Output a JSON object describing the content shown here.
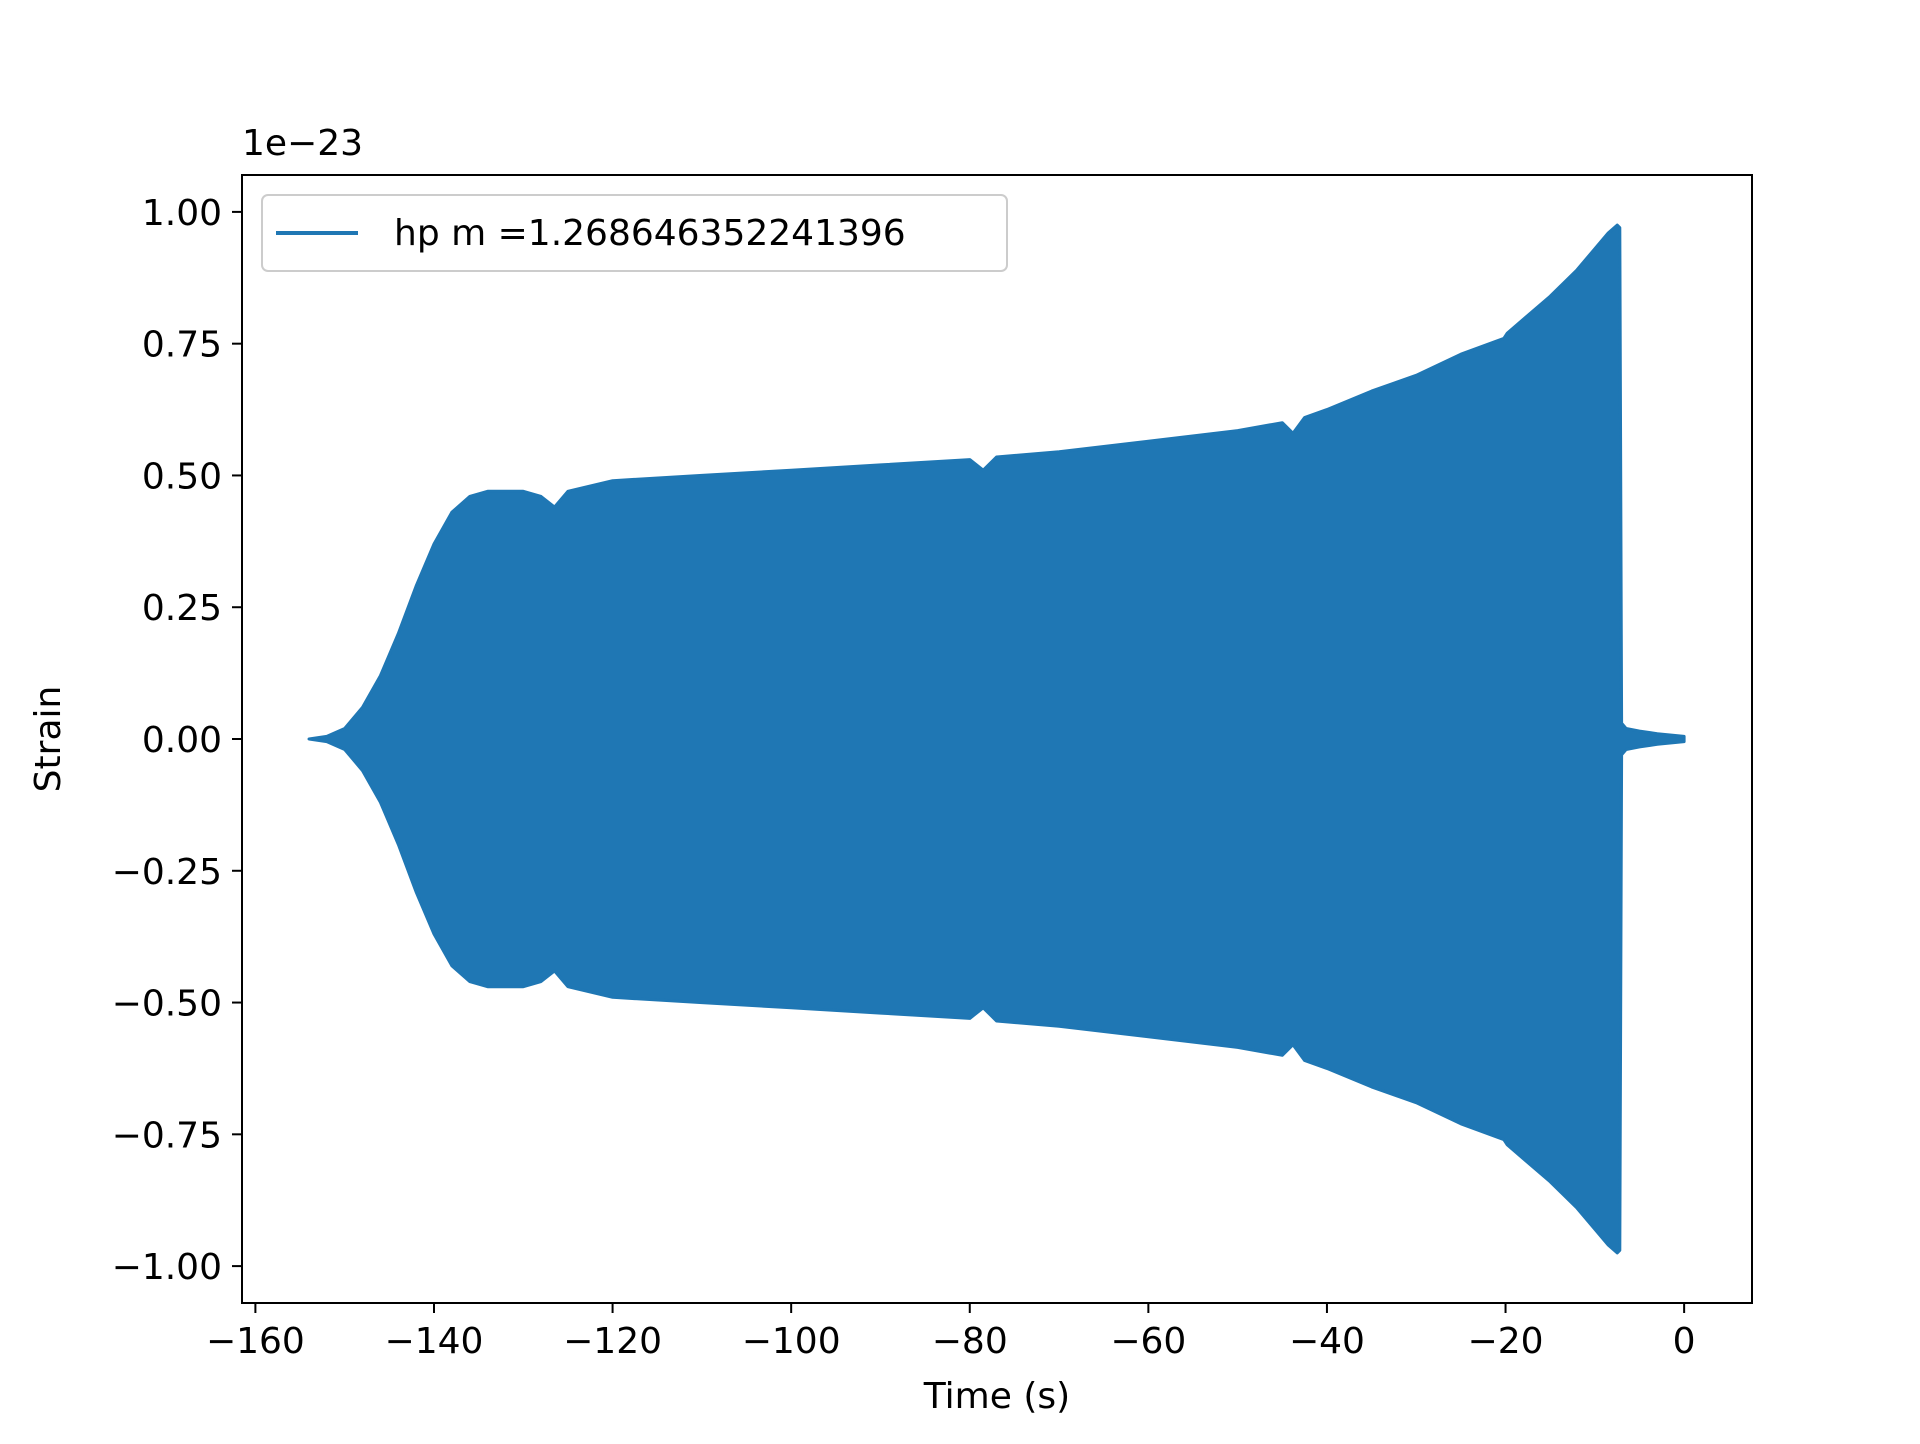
{
  "chart_data": {
    "type": "line",
    "title": "",
    "xlabel": "Time (s)",
    "ylabel": "Strain",
    "offset_text": "1e−23",
    "y_scale_factor": "1e-23",
    "xlim": [
      -161.5,
      7.6
    ],
    "ylim": [
      -1.07,
      1.07
    ],
    "xticks": [
      -160,
      -140,
      -120,
      -100,
      -80,
      -60,
      -40,
      -20,
      0
    ],
    "xtick_labels": [
      "−160",
      "−140",
      "−120",
      "−100",
      "−80",
      "−60",
      "−40",
      "−20",
      "0"
    ],
    "yticks": [
      -1.0,
      -0.75,
      -0.5,
      -0.25,
      0.0,
      0.25,
      0.5,
      0.75,
      1.0
    ],
    "ytick_labels": [
      "−1.00",
      "−0.75",
      "−0.50",
      "−0.25",
      "0.00",
      "0.25",
      "0.50",
      "0.75",
      "1.00"
    ],
    "grid": false,
    "legend_position": "upper-left",
    "series": [
      {
        "name": "hp m =1.268646352241396",
        "color": "#1f77b4",
        "envelope": {
          "description_unit": "strain amplitude (x1e-23) of the rapidly oscillating signal",
          "t": [
            -154.0,
            -152.0,
            -150.0,
            -148.0,
            -146.0,
            -144.0,
            -142.0,
            -140.0,
            -138.0,
            -136.0,
            -134.0,
            -132.0,
            -130.0,
            -128.0,
            -126.5,
            -125.0,
            -120.0,
            -110.0,
            -100.0,
            -90.0,
            -80.0,
            -78.5,
            -77.0,
            -70.0,
            -60.0,
            -50.0,
            -45.0,
            -43.8,
            -42.5,
            -40.0,
            -35.0,
            -30.0,
            -25.0,
            -20.2,
            -19.8,
            -15.0,
            -12.0,
            -10.0,
            -8.5,
            -7.5,
            -7.2,
            -7.0,
            -6.5,
            -5.0,
            -3.0,
            0.0
          ],
          "amplitude": [
            0.0,
            0.005,
            0.02,
            0.06,
            0.12,
            0.2,
            0.29,
            0.37,
            0.43,
            0.46,
            0.47,
            0.47,
            0.47,
            0.46,
            0.44,
            0.47,
            0.49,
            0.5,
            0.51,
            0.52,
            0.53,
            0.51,
            0.535,
            0.545,
            0.565,
            0.585,
            0.6,
            0.58,
            0.61,
            0.625,
            0.66,
            0.69,
            0.73,
            0.76,
            0.77,
            0.84,
            0.89,
            0.93,
            0.96,
            0.975,
            0.97,
            0.03,
            0.02,
            0.015,
            0.01,
            0.005
          ]
        }
      }
    ]
  }
}
